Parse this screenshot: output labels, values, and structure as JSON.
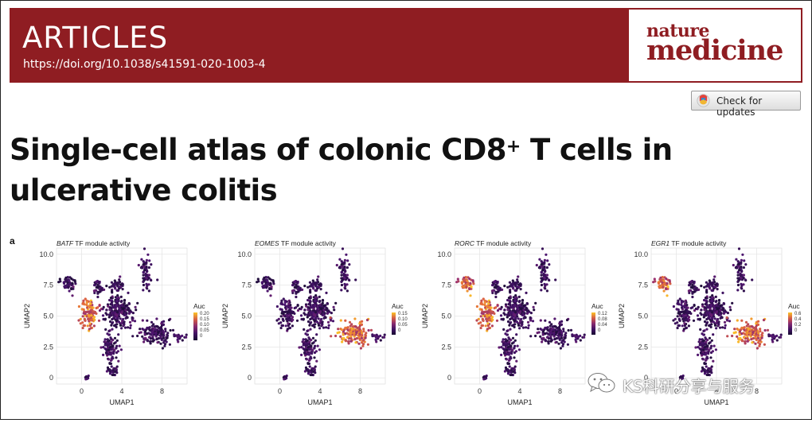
{
  "banner": {
    "section": "ARTICLES",
    "doi": "https://doi.org/10.1038/s41591-020-1003-4",
    "journal_logo": {
      "line1": "nature",
      "line2": "medicine"
    },
    "brand_color": "#8f1d22"
  },
  "update_button": {
    "label": "Check for updates",
    "icon": "crossmark-icon"
  },
  "article": {
    "title_line1_pre": "Single-cell atlas of colonic CD8",
    "title_sup": "+",
    "title_line1_post": " T cells in",
    "title_line2": "ulcerative colitis"
  },
  "figure": {
    "panel_label": "a"
  },
  "chart_data": [
    {
      "type": "scatter",
      "title_italic": "BATF",
      "title_rest": " TF module activity",
      "xlabel": "UMAP1",
      "ylabel": "UMAP2",
      "x_ticks": [
        "0",
        "4",
        "8"
      ],
      "y_ticks": [
        "0",
        "2.5",
        "5.0",
        "7.5",
        "10.0"
      ],
      "xlim": [
        -2.5,
        10.5
      ],
      "ylim": [
        -0.5,
        10.5
      ],
      "legend": {
        "title": "Auc",
        "labels": [
          "0.20",
          "0.15",
          "0.10",
          "0.05",
          "0"
        ],
        "position": "right"
      },
      "high_regions": [
        "left-lobe"
      ],
      "grid": true
    },
    {
      "type": "scatter",
      "title_italic": "EOMES",
      "title_rest": " TF module activity",
      "xlabel": "UMAP1",
      "ylabel": "UMAP2",
      "x_ticks": [
        "0",
        "4",
        "8"
      ],
      "y_ticks": [
        "0",
        "2.5",
        "5.0",
        "7.5",
        "10.0"
      ],
      "xlim": [
        -2.5,
        10.5
      ],
      "ylim": [
        -0.5,
        10.5
      ],
      "legend": {
        "title": "Auc",
        "labels": [
          "0.15",
          "0.10",
          "0.05",
          "0"
        ],
        "position": "right"
      },
      "high_regions": [
        "right-lobe"
      ],
      "grid": true
    },
    {
      "type": "scatter",
      "title_italic": "RORC",
      "title_rest": " TF module activity",
      "xlabel": "UMAP1",
      "ylabel": "UMAP2",
      "x_ticks": [
        "0",
        "4",
        "8"
      ],
      "y_ticks": [
        "0",
        "2.5",
        "5.0",
        "7.5",
        "10.0"
      ],
      "xlim": [
        -2.5,
        10.5
      ],
      "ylim": [
        -0.5,
        10.5
      ],
      "legend": {
        "title": "Auc",
        "labels": [
          "0.12",
          "0.08",
          "0.04",
          "0"
        ],
        "position": "right"
      },
      "high_regions": [
        "left-lobe",
        "top-left-cluster"
      ],
      "grid": true
    },
    {
      "type": "scatter",
      "title_italic": "EGR1",
      "title_rest": " TF module activity",
      "xlabel": "UMAP1",
      "ylabel": "UMAP2",
      "x_ticks": [
        "0",
        "4",
        "8"
      ],
      "y_ticks": [
        "0",
        "2.5",
        "5.0",
        "7.5",
        "10.0"
      ],
      "xlim": [
        -2.5,
        10.5
      ],
      "ylim": [
        -0.5,
        10.5
      ],
      "legend": {
        "title": "Auc",
        "labels": [
          "0.6",
          "0.4",
          "0.2",
          "0"
        ],
        "position": "right"
      },
      "high_regions": [
        "top-left-cluster",
        "right-lobe"
      ],
      "grid": true
    }
  ],
  "watermark": {
    "text": "KS科研分享与服务",
    "icon": "wechat-icon"
  }
}
